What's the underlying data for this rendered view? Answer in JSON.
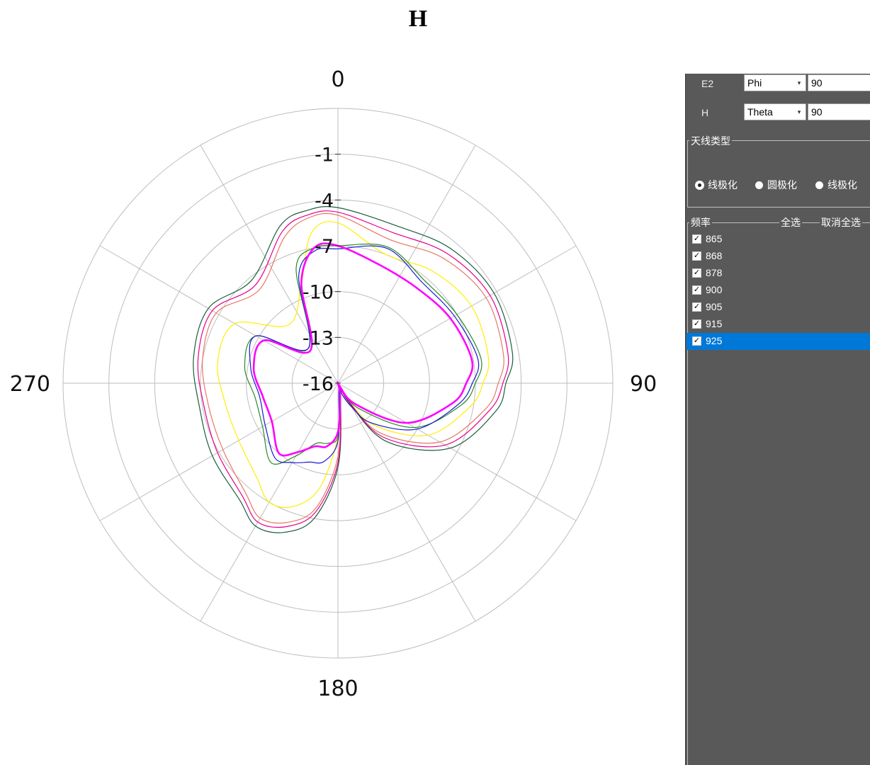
{
  "chart_data": {
    "type": "polar-line",
    "title": "H",
    "angle_labels": [
      "0",
      "90",
      "180",
      "270"
    ],
    "angle_direction": "clockwise",
    "angle_zero": "top",
    "radial_labels": [
      "-1",
      "-4",
      "-7",
      "-10",
      "-13",
      "-16"
    ],
    "radial_range": [
      -16,
      2
    ],
    "grid": true,
    "series": [
      {
        "name": "865",
        "color": "#1b5e3c",
        "theta": [
          0,
          20,
          40,
          60,
          80,
          90,
          100,
          120,
          140,
          150,
          160,
          170,
          180,
          190,
          200,
          210,
          220,
          240,
          260,
          280,
          300,
          320,
          340,
          350
        ],
        "r": [
          -4.5,
          -5,
          -4.5,
          -4.2,
          -4.4,
          -5,
          -5.5,
          -7.5,
          -11,
          -14.5,
          -16,
          -15,
          -10.5,
          -7,
          -5.6,
          -5.2,
          -6,
          -6.5,
          -6.8,
          -6.4,
          -6.2,
          -7.2,
          -5,
          -4.5
        ]
      },
      {
        "name": "868",
        "color": "#e77766",
        "theta": [
          0,
          20,
          40,
          60,
          80,
          90,
          100,
          120,
          140,
          150,
          160,
          170,
          180,
          190,
          200,
          210,
          220,
          240,
          260,
          280,
          300,
          320,
          340,
          350
        ],
        "r": [
          -5,
          -6,
          -5.3,
          -4.8,
          -5,
          -5.5,
          -6.2,
          -8.3,
          -11.8,
          -15,
          -16,
          -15.3,
          -11.2,
          -7.7,
          -6.3,
          -5.8,
          -6.6,
          -7.3,
          -7.4,
          -7,
          -6.8,
          -8,
          -5.8,
          -5
        ]
      },
      {
        "name": "878",
        "color": "#ffee00",
        "theta": [
          0,
          20,
          40,
          60,
          80,
          90,
          100,
          120,
          140,
          150,
          160,
          170,
          180,
          190,
          200,
          210,
          220,
          240,
          260,
          280,
          300,
          320,
          340,
          350
        ],
        "r": [
          -5.5,
          -7,
          -6.4,
          -5.9,
          -6,
          -6.5,
          -7.2,
          -9.2,
          -12.5,
          -15.3,
          -16,
          -15.5,
          -12.5,
          -9,
          -7.4,
          -7,
          -7.8,
          -8.5,
          -8.5,
          -8,
          -8.2,
          -11,
          -9,
          -6
        ]
      },
      {
        "name": "900",
        "color": "#2a8a2a",
        "theta": [
          0,
          20,
          40,
          60,
          80,
          90,
          100,
          120,
          140,
          150,
          160,
          170,
          180,
          190,
          200,
          210,
          220,
          240,
          260,
          280,
          300,
          320,
          340,
          350
        ],
        "r": [
          -7,
          -6.5,
          -7.2,
          -7,
          -6.5,
          -7,
          -7.8,
          -10.2,
          -13.8,
          -15.6,
          -16,
          -15.3,
          -12.5,
          -12,
          -11.8,
          -10.5,
          -9.2,
          -10.3,
          -10.5,
          -9.8,
          -9.8,
          -13,
          -8,
          -7
        ]
      },
      {
        "name": "905",
        "color": "#e6008c",
        "theta": [
          0,
          20,
          40,
          60,
          80,
          90,
          100,
          120,
          140,
          150,
          160,
          170,
          180,
          190,
          200,
          210,
          220,
          240,
          260,
          280,
          300,
          320,
          340,
          350
        ],
        "r": [
          -4.8,
          -5.5,
          -4.9,
          -4.5,
          -4.7,
          -5.2,
          -5.9,
          -7.9,
          -11.4,
          -14.8,
          -16,
          -15.2,
          -10.8,
          -7.4,
          -6,
          -5.5,
          -6.3,
          -6.9,
          -7.1,
          -6.7,
          -6.5,
          -7.6,
          -5.4,
          -4.8
        ]
      },
      {
        "name": "915",
        "color": "#1a1ad0",
        "theta": [
          0,
          20,
          40,
          60,
          80,
          90,
          100,
          120,
          140,
          150,
          160,
          170,
          180,
          190,
          200,
          210,
          220,
          240,
          260,
          280,
          300,
          320,
          340,
          350
        ],
        "r": [
          -7.2,
          -6.6,
          -7.4,
          -7.2,
          -6.7,
          -7.2,
          -8,
          -10,
          -12.6,
          -14.2,
          -15.2,
          -15.6,
          -12.2,
          -10.8,
          -10.5,
          -10,
          -9.6,
          -10.5,
          -10.8,
          -10.2,
          -9.8,
          -13,
          -8.5,
          -7.2
        ]
      },
      {
        "name": "925",
        "color": "#ff00ff",
        "theta": [
          0,
          20,
          40,
          60,
          80,
          90,
          100,
          120,
          140,
          150,
          160,
          170,
          180,
          190,
          200,
          210,
          220,
          240,
          260,
          280,
          300,
          320,
          340,
          350
        ],
        "r": [
          -7,
          -7.8,
          -7.9,
          -7.5,
          -7.1,
          -7.6,
          -8.4,
          -10.8,
          -14.2,
          -15.8,
          -16,
          -15.2,
          -12.8,
          -11.8,
          -11.6,
          -10.8,
          -10,
          -11,
          -11,
          -10.4,
          -10.4,
          -13.2,
          -9,
          -7
        ]
      }
    ]
  },
  "panel": {
    "rows": [
      {
        "label": "E2",
        "plane": "Phi",
        "value": "90"
      },
      {
        "label": "H",
        "plane": "Theta",
        "value": "90"
      }
    ],
    "antenna_group_title": "天线类型",
    "antenna_options": [
      "线极化",
      "圆极化",
      "线极化"
    ],
    "antenna_checked_index": 0,
    "freq_group_title": "频率",
    "select_all": "全选",
    "deselect_all": "取消全选",
    "frequencies": [
      "865",
      "868",
      "878",
      "900",
      "905",
      "915",
      "925"
    ],
    "selected_frequency_index": 6,
    "check_mark": "✓",
    "dropdown_arrow": "▾"
  }
}
